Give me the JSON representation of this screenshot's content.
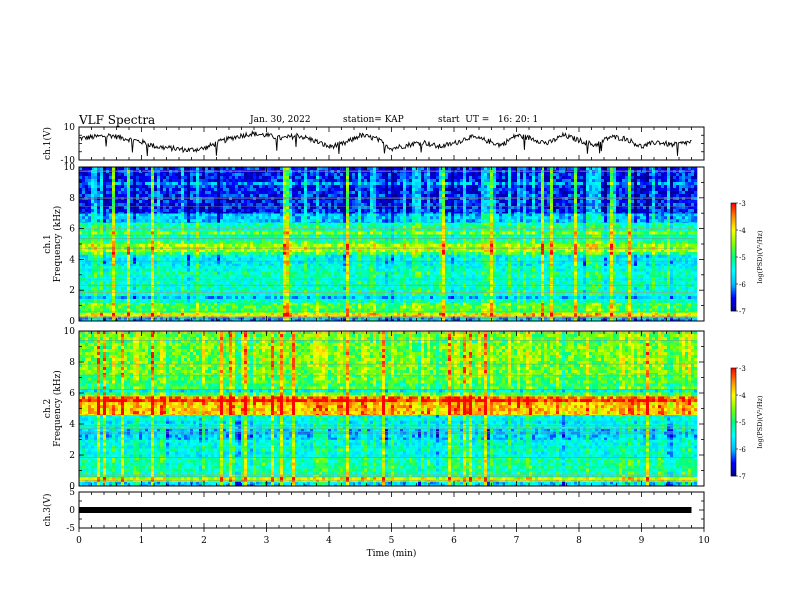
{
  "header": {
    "title": "VLF Spectra",
    "date": "Jan. 30, 2022",
    "station": "station= KAP",
    "start_ut": "start  UT =   16: 20: 1"
  },
  "chart_data": [
    {
      "type": "line",
      "panel": "ch1-waveform",
      "ylabel": "ch.1(V)",
      "xlim": [
        0,
        10
      ],
      "ylim": [
        -10,
        10
      ],
      "yticks": [
        "10",
        "-10"
      ],
      "x": [
        0,
        0.25,
        0.5,
        0.75,
        1,
        1.25,
        1.5,
        1.75,
        2,
        2.25,
        2.5,
        2.75,
        3,
        3.25,
        3.5,
        3.75,
        4,
        4.25,
        4.5,
        4.75,
        5,
        5.25,
        5.5,
        5.75,
        6,
        6.25,
        6.5,
        6.75,
        7,
        7.25,
        7.5,
        7.75,
        8,
        8.25,
        8.5,
        8.75,
        9,
        9.25,
        9.5,
        9.8
      ],
      "y": [
        3,
        4,
        5,
        3,
        1,
        -2,
        -3,
        -4,
        -3,
        1,
        4,
        6,
        5,
        3,
        5,
        2,
        -2,
        0,
        5,
        3,
        -3,
        -1,
        1,
        -2,
        0,
        4,
        2,
        -1,
        5,
        3,
        0,
        5,
        2,
        -1,
        4,
        3,
        -2,
        1,
        -1,
        1
      ]
    },
    {
      "type": "heatmap",
      "panel": "ch1-spectrogram",
      "ylabel": "ch.1\nFrequency (kHz)",
      "xlim": [
        0,
        10
      ],
      "ylim": [
        0,
        10
      ],
      "yticks": [
        "0",
        "2",
        "4",
        "6",
        "8",
        "10"
      ],
      "colorbar": {
        "label": "log(PSD)(V²/Hz)",
        "range": [
          -7,
          -3
        ],
        "ticks": [
          "-3",
          "-4",
          "-5",
          "-6",
          "-7"
        ]
      },
      "bands": [
        {
          "f": [
            0,
            0.3
          ],
          "level": -6.0
        },
        {
          "f": [
            0.3,
            0.55
          ],
          "level": -4.0
        },
        {
          "f": [
            0.55,
            1.2
          ],
          "level": -4.8
        },
        {
          "f": [
            1.2,
            2.6
          ],
          "level": -5.3
        },
        {
          "f": [
            2.6,
            3.6
          ],
          "level": -5.4
        },
        {
          "f": [
            3.6,
            4.5
          ],
          "level": -5.6
        },
        {
          "f": [
            4.5,
            5.4
          ],
          "level": -4.4
        },
        {
          "f": [
            5.4,
            6.4
          ],
          "level": -5.2
        },
        {
          "f": [
            6.4,
            7.0
          ],
          "level": -5.9
        },
        {
          "f": [
            7.0,
            10
          ],
          "level": -6.5
        }
      ]
    },
    {
      "type": "heatmap",
      "panel": "ch2-spectrogram",
      "ylabel": "ch.2\nFrequency (kHz)",
      "xlim": [
        0,
        10
      ],
      "ylim": [
        0,
        10
      ],
      "yticks": [
        "0",
        "2",
        "4",
        "6",
        "8",
        "10"
      ],
      "colorbar": {
        "label": "log(PSD)(V²/Hz)",
        "range": [
          -7,
          -3
        ],
        "ticks": [
          "-3",
          "-4",
          "-5",
          "-6",
          "-7"
        ]
      },
      "bands": [
        {
          "f": [
            0,
            0.3
          ],
          "level": -5.8
        },
        {
          "f": [
            0.3,
            0.6
          ],
          "level": -4.2
        },
        {
          "f": [
            0.6,
            1.9
          ],
          "level": -5.2
        },
        {
          "f": [
            1.9,
            3.0
          ],
          "level": -5.5
        },
        {
          "f": [
            3.0,
            3.7
          ],
          "level": -5.9
        },
        {
          "f": [
            3.7,
            4.6
          ],
          "level": -5.5
        },
        {
          "f": [
            4.6,
            5.8
          ],
          "level": -3.8
        },
        {
          "f": [
            5.8,
            7.2
          ],
          "level": -4.8
        },
        {
          "f": [
            7.2,
            10
          ],
          "level": -4.6
        }
      ]
    },
    {
      "type": "line",
      "panel": "ch3-waveform",
      "ylabel": "ch.3(V)",
      "xlabel": "Time (min)",
      "xlim": [
        0,
        10
      ],
      "ylim": [
        -5,
        5
      ],
      "yticks": [
        "5",
        "0",
        "-5"
      ],
      "xticks": [
        "0",
        "1",
        "2",
        "3",
        "4",
        "5",
        "6",
        "7",
        "8",
        "9",
        "10"
      ],
      "x": [
        0,
        9.8
      ],
      "y": [
        0,
        0
      ]
    }
  ],
  "colors": {
    "colormap": [
      "#00008b",
      "#0000ff",
      "#00bfff",
      "#00ffff",
      "#00ff7f",
      "#7fff00",
      "#ffff00",
      "#ff8c00",
      "#ff0000",
      "#ffffff"
    ],
    "trace": "#000000"
  }
}
